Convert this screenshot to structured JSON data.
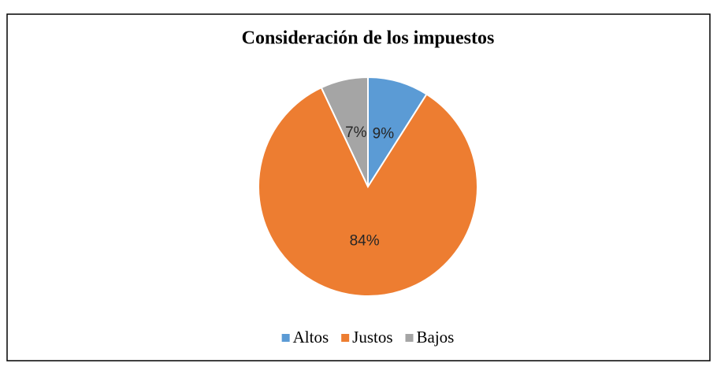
{
  "chart_data": {
    "type": "pie",
    "title": "Consideración de los impuestos",
    "categories": [
      "Altos",
      "Justos",
      "Bajos"
    ],
    "values": [
      9,
      84,
      7
    ],
    "value_labels": [
      "9%",
      "84%",
      "7%"
    ],
    "colors": [
      "#5b9bd5",
      "#ed7d31",
      "#a5a5a5"
    ],
    "legend": "bottom"
  }
}
